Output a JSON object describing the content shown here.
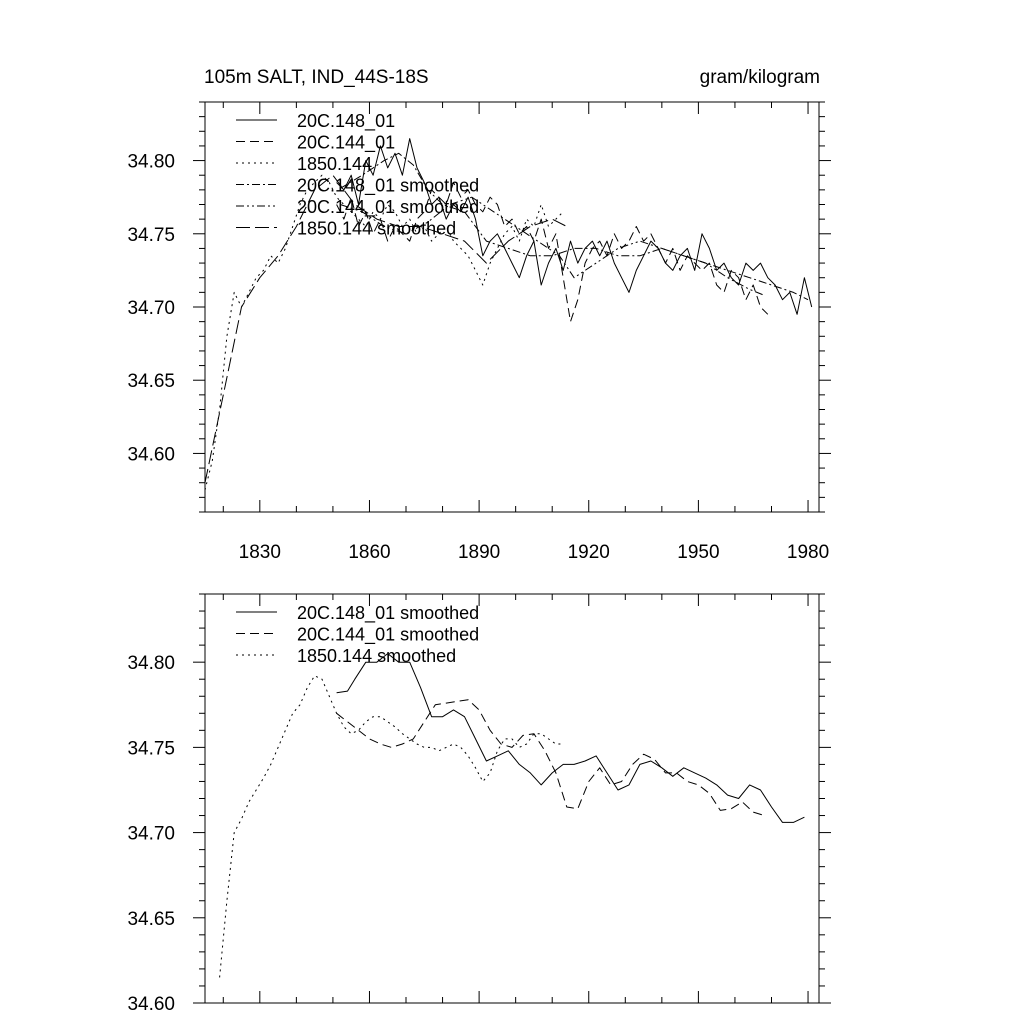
{
  "header": {
    "title": "105m SALT, IND_44S-18S",
    "units": "gram/kilogram"
  },
  "chart_data": [
    {
      "type": "line",
      "title": "105m SALT, IND_44S-18S",
      "units": "gram/kilogram",
      "xlabel": "",
      "ylabel": "",
      "xlim": [
        1815,
        1983
      ],
      "ylim": [
        34.56,
        34.84
      ],
      "xticks": [
        1830,
        1860,
        1890,
        1920,
        1950,
        1980
      ],
      "xtick_labels": [
        "1830",
        "1860",
        "1890",
        "1920",
        "1950",
        "1980"
      ],
      "yticks": [
        34.6,
        34.65,
        34.7,
        34.75,
        34.8
      ],
      "ytick_labels": [
        "34.60",
        "34.65",
        "34.70",
        "34.75",
        "34.80"
      ],
      "legend_placement": "top-left",
      "series": [
        {
          "name": "20C.148_01",
          "style": "solid",
          "x": [
            1851,
            1853,
            1855,
            1857,
            1859,
            1861,
            1863,
            1865,
            1867,
            1869,
            1871,
            1873,
            1875,
            1877,
            1879,
            1881,
            1883,
            1885,
            1887,
            1889,
            1891,
            1893,
            1895,
            1897,
            1899,
            1901,
            1903,
            1905,
            1907,
            1909,
            1911,
            1913,
            1915,
            1917,
            1919,
            1921,
            1923,
            1925,
            1927,
            1929,
            1931,
            1933,
            1935,
            1937,
            1939,
            1941,
            1943,
            1945,
            1947,
            1949,
            1951,
            1953,
            1955,
            1957,
            1959,
            1961,
            1963,
            1965,
            1967,
            1969,
            1971,
            1973,
            1975,
            1977,
            1979,
            1981
          ],
          "y": [
            34.785,
            34.78,
            34.79,
            34.77,
            34.8,
            34.79,
            34.81,
            34.795,
            34.805,
            34.79,
            34.815,
            34.795,
            34.785,
            34.77,
            34.775,
            34.76,
            34.77,
            34.765,
            34.775,
            34.76,
            34.735,
            34.745,
            34.75,
            34.74,
            34.73,
            34.72,
            34.735,
            34.745,
            34.715,
            34.73,
            34.74,
            34.725,
            34.745,
            34.73,
            34.74,
            34.745,
            34.735,
            34.745,
            34.73,
            34.72,
            34.71,
            34.725,
            34.735,
            34.745,
            34.74,
            34.73,
            34.725,
            34.735,
            34.74,
            34.725,
            34.75,
            34.74,
            34.725,
            34.73,
            34.72,
            34.715,
            34.73,
            34.725,
            34.73,
            34.72,
            34.715,
            34.705,
            34.71,
            34.695,
            34.72,
            34.7
          ]
        },
        {
          "name": "20C.144_01",
          "style": "dashed",
          "x": [
            1851,
            1853,
            1855,
            1857,
            1859,
            1861,
            1863,
            1865,
            1867,
            1869,
            1871,
            1873,
            1875,
            1877,
            1879,
            1881,
            1883,
            1885,
            1887,
            1889,
            1891,
            1893,
            1895,
            1897,
            1899,
            1901,
            1903,
            1905,
            1907,
            1909,
            1911,
            1913,
            1915,
            1917,
            1919,
            1921,
            1923,
            1925,
            1927,
            1929,
            1931,
            1933,
            1935,
            1937,
            1939,
            1941,
            1943,
            1945,
            1947,
            1949,
            1951,
            1953,
            1955,
            1957,
            1959,
            1961,
            1963,
            1965,
            1967,
            1969
          ],
          "y": [
            34.77,
            34.76,
            34.775,
            34.755,
            34.765,
            34.75,
            34.76,
            34.745,
            34.755,
            34.75,
            34.745,
            34.76,
            34.765,
            34.78,
            34.775,
            34.77,
            34.785,
            34.775,
            34.78,
            34.77,
            34.765,
            34.775,
            34.77,
            34.755,
            34.76,
            34.75,
            34.755,
            34.745,
            34.76,
            34.74,
            34.75,
            34.72,
            34.69,
            34.705,
            34.73,
            34.74,
            34.745,
            34.735,
            34.75,
            34.74,
            34.745,
            34.755,
            34.745,
            34.75,
            34.74,
            34.73,
            34.74,
            34.725,
            34.735,
            34.73,
            34.725,
            34.73,
            34.715,
            34.71,
            34.725,
            34.72,
            34.705,
            34.715,
            34.7,
            34.695
          ]
        },
        {
          "name": "1850.144",
          "style": "dotted",
          "x": [
            1815,
            1817,
            1819,
            1821,
            1823,
            1825,
            1827,
            1829,
            1831,
            1833,
            1835,
            1837,
            1839,
            1841,
            1843,
            1845,
            1847,
            1849,
            1851,
            1853,
            1855,
            1857,
            1859,
            1861,
            1863,
            1865,
            1867,
            1869,
            1871,
            1873,
            1875,
            1877,
            1879,
            1881,
            1883,
            1885,
            1887,
            1889,
            1891,
            1893,
            1895,
            1897,
            1899,
            1901,
            1903,
            1905,
            1907,
            1909,
            1911,
            1913
          ],
          "y": [
            34.575,
            34.595,
            34.63,
            34.68,
            34.71,
            34.7,
            34.71,
            34.72,
            34.725,
            34.735,
            34.73,
            34.74,
            34.755,
            34.77,
            34.78,
            34.785,
            34.79,
            34.785,
            34.775,
            34.77,
            34.765,
            34.76,
            34.755,
            34.765,
            34.76,
            34.77,
            34.765,
            34.755,
            34.76,
            34.75,
            34.755,
            34.745,
            34.75,
            34.755,
            34.745,
            34.74,
            34.735,
            34.725,
            34.715,
            34.73,
            34.74,
            34.75,
            34.755,
            34.745,
            34.76,
            34.755,
            34.77,
            34.755,
            34.76,
            34.765
          ]
        },
        {
          "name": "20C.148_01 smoothed",
          "style": "dashdot",
          "x": [
            1852,
            1858,
            1864,
            1868,
            1872,
            1876,
            1880,
            1886,
            1892,
            1898,
            1904,
            1910,
            1916,
            1922,
            1928,
            1934,
            1940,
            1946,
            1952,
            1958,
            1964,
            1970,
            1976,
            1980
          ],
          "y": [
            34.781,
            34.79,
            34.8,
            34.805,
            34.797,
            34.78,
            34.77,
            34.765,
            34.745,
            34.74,
            34.735,
            34.735,
            34.74,
            34.74,
            34.735,
            34.735,
            34.74,
            34.735,
            34.73,
            34.725,
            34.72,
            34.715,
            34.71,
            34.705
          ]
        },
        {
          "name": "20C.144_01 smoothed",
          "style": "dashdotdot",
          "x": [
            1852,
            1858,
            1864,
            1870,
            1876,
            1882,
            1888,
            1894,
            1900,
            1906,
            1912,
            1916,
            1922,
            1928,
            1934,
            1940,
            1946,
            1952,
            1958,
            1964,
            1968
          ],
          "y": [
            34.77,
            34.765,
            34.755,
            34.75,
            34.758,
            34.77,
            34.775,
            34.765,
            34.755,
            34.745,
            34.735,
            34.72,
            34.73,
            34.74,
            34.745,
            34.74,
            34.735,
            34.73,
            34.72,
            34.712,
            34.708
          ]
        },
        {
          "name": "1850.144 smoothed",
          "style": "longdash",
          "x": [
            1815,
            1820,
            1825,
            1830,
            1835,
            1840,
            1845,
            1850,
            1856,
            1862,
            1868,
            1874,
            1880,
            1886,
            1892,
            1898,
            1904,
            1910,
            1914
          ],
          "y": [
            34.58,
            34.64,
            34.7,
            34.72,
            34.735,
            34.755,
            34.78,
            34.79,
            34.77,
            34.76,
            34.755,
            34.755,
            34.75,
            34.745,
            34.73,
            34.745,
            34.755,
            34.76,
            34.755
          ]
        }
      ]
    },
    {
      "type": "line",
      "title": "",
      "xlabel": "",
      "ylabel": "",
      "xlim": [
        1815,
        1983
      ],
      "ylim": [
        34.6,
        34.84
      ],
      "xticks": [
        1830,
        1860,
        1890,
        1920,
        1950,
        1980
      ],
      "yticks": [
        34.6,
        34.65,
        34.7,
        34.75,
        34.8
      ],
      "ytick_labels": [
        "34.60",
        "34.65",
        "34.70",
        "34.75",
        "34.80"
      ],
      "legend_placement": "top-left",
      "series": [
        {
          "name": "20C.148_01 smoothed",
          "style": "solid",
          "x": [
            1851,
            1854,
            1856,
            1859,
            1862,
            1865,
            1868,
            1871,
            1874,
            1877,
            1880,
            1883,
            1886,
            1889,
            1892,
            1895,
            1898,
            1901,
            1904,
            1907,
            1910,
            1913,
            1916,
            1919,
            1922,
            1925,
            1928,
            1931,
            1934,
            1937,
            1940,
            1943,
            1946,
            1949,
            1952,
            1955,
            1958,
            1961,
            1964,
            1967,
            1970,
            1973,
            1976,
            1979
          ],
          "y": [
            34.782,
            34.783,
            34.79,
            34.8,
            34.8,
            34.805,
            34.8,
            34.8,
            34.785,
            34.768,
            34.768,
            34.772,
            34.768,
            34.755,
            34.742,
            34.745,
            34.748,
            34.74,
            34.735,
            34.728,
            34.735,
            34.74,
            34.74,
            34.742,
            34.745,
            34.735,
            34.725,
            34.728,
            34.74,
            34.742,
            34.738,
            34.733,
            34.738,
            34.735,
            34.732,
            34.728,
            34.722,
            34.72,
            34.728,
            34.725,
            34.715,
            34.706,
            34.706,
            34.709
          ]
        },
        {
          "name": "20C.144_01 smoothed",
          "style": "dashed",
          "x": [
            1851,
            1854,
            1857,
            1860,
            1863,
            1866,
            1869,
            1872,
            1875,
            1878,
            1881,
            1884,
            1887,
            1890,
            1893,
            1896,
            1899,
            1902,
            1905,
            1908,
            1911,
            1914,
            1917,
            1920,
            1923,
            1926,
            1929,
            1932,
            1935,
            1938,
            1941,
            1944,
            1947,
            1950,
            1953,
            1956,
            1959,
            1962,
            1965,
            1968
          ],
          "y": [
            34.77,
            34.765,
            34.76,
            34.755,
            34.752,
            34.75,
            34.752,
            34.755,
            34.765,
            34.775,
            34.776,
            34.777,
            34.778,
            34.772,
            34.76,
            34.752,
            34.75,
            34.757,
            34.758,
            34.748,
            34.735,
            34.715,
            34.714,
            34.73,
            34.738,
            34.728,
            34.73,
            34.74,
            34.746,
            34.743,
            34.735,
            34.735,
            34.73,
            34.728,
            34.723,
            34.713,
            34.714,
            34.718,
            34.712,
            34.71
          ]
        },
        {
          "name": "1850.144 smoothed",
          "style": "dotted",
          "x": [
            1819,
            1821,
            1823,
            1825,
            1827,
            1829,
            1831,
            1833,
            1835,
            1837,
            1839,
            1841,
            1843,
            1845,
            1847,
            1849,
            1851,
            1853,
            1855,
            1857,
            1859,
            1861,
            1863,
            1865,
            1867,
            1869,
            1871,
            1873,
            1875,
            1877,
            1879,
            1881,
            1883,
            1885,
            1887,
            1889,
            1891,
            1893,
            1895,
            1897,
            1899,
            1901,
            1903,
            1905,
            1907,
            1909,
            1911,
            1913
          ],
          "y": [
            34.615,
            34.66,
            34.7,
            34.708,
            34.718,
            34.725,
            34.732,
            34.74,
            34.75,
            34.76,
            34.77,
            34.775,
            34.785,
            34.792,
            34.79,
            34.78,
            34.77,
            34.762,
            34.758,
            34.76,
            34.765,
            34.768,
            34.768,
            34.765,
            34.762,
            34.758,
            34.755,
            34.752,
            34.75,
            34.75,
            34.748,
            34.75,
            34.752,
            34.75,
            34.745,
            34.738,
            34.73,
            34.735,
            34.748,
            34.755,
            34.755,
            34.75,
            34.752,
            34.758,
            34.758,
            34.755,
            34.752,
            34.752
          ]
        }
      ]
    }
  ]
}
